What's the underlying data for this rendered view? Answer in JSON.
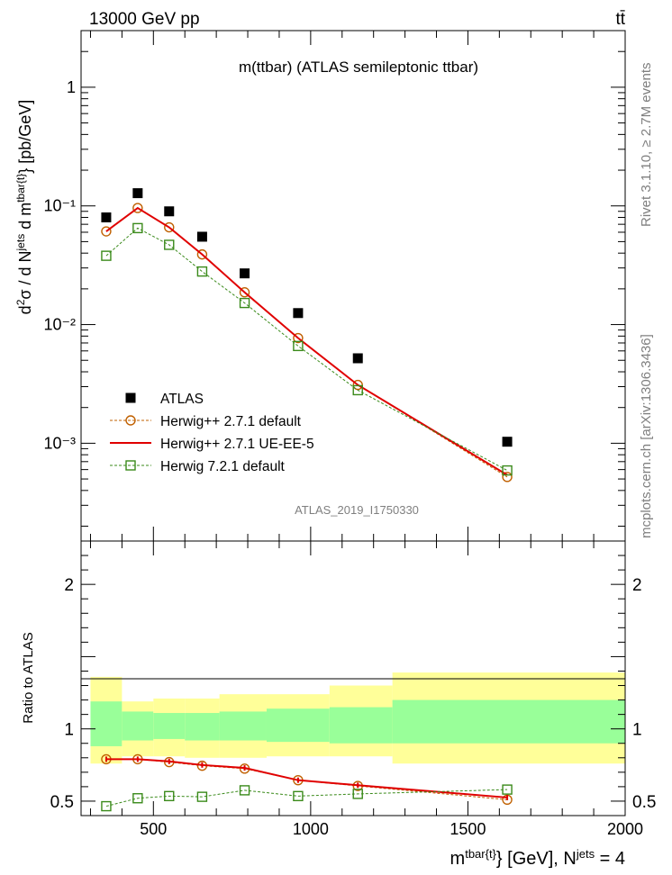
{
  "header": {
    "left": "13000 GeV pp",
    "right": "tt̄"
  },
  "side_labels": {
    "rivet": "Rivet 3.1.10, ≥ 2.7M events",
    "mcplots": "mcplots.cern.ch [arXiv:1306.3436]"
  },
  "watermark": "ATLAS_2019_I1750330",
  "colors": {
    "atlas": "#000000",
    "herwigpp_default": "#c06000",
    "herwigpp_ueee5": "#e00000",
    "herwig7": "#3a8a1a",
    "band_inner": "#99ff99",
    "band_outer": "#ffff99"
  },
  "chart_data": [
    {
      "type": "line",
      "title": "m(ttbar) (ATLAS semileptonic ttbar)",
      "ylabel": "d²σ / d N^jets d m^tbar{t} [pb/GeV]",
      "yscale": "log",
      "ylim": [
        0.00015,
        3
      ],
      "xlim": [
        270,
        2000
      ],
      "y_ticks": [
        "10⁻³",
        "10⁻²",
        "10⁻¹",
        "1"
      ],
      "legend_position": "lower-left",
      "x": [
        350,
        450,
        550,
        655,
        790,
        960,
        1150,
        1625
      ],
      "series": [
        {
          "name": "ATLAS",
          "values": [
            0.08,
            0.128,
            0.09,
            0.055,
            0.027,
            0.0125,
            0.0052,
            0.00103
          ]
        },
        {
          "name": "Herwig++ 2.7.1 default",
          "values": [
            0.061,
            0.096,
            0.066,
            0.039,
            0.0187,
            0.0077,
            0.0031,
            0.00052
          ]
        },
        {
          "name": "Herwig++ 2.7.1 UE-EE-5",
          "values": [
            0.061,
            0.096,
            0.066,
            0.039,
            0.0187,
            0.0077,
            0.0031,
            0.00054
          ]
        },
        {
          "name": "Herwig 7.2.1 default",
          "values": [
            0.038,
            0.065,
            0.047,
            0.028,
            0.0152,
            0.0066,
            0.0028,
            0.00059
          ]
        }
      ]
    },
    {
      "type": "line",
      "ylabel": "Ratio to ATLAS",
      "xlabel": "m^tbar{t} [GeV], N^jets = 4",
      "ylim": [
        0.4,
        2.3
      ],
      "xlim": [
        270,
        2000
      ],
      "x_ticks": [
        "500",
        "1000",
        "1500",
        "2000"
      ],
      "y_ticks": [
        "0.5",
        "1",
        "2"
      ],
      "x": [
        350,
        450,
        550,
        655,
        790,
        960,
        1150,
        1625
      ],
      "bin_edges": [
        300,
        400,
        500,
        600,
        710,
        860,
        1060,
        1260,
        2000
      ],
      "band_inner": [
        [
          0.88,
          1.19
        ],
        [
          0.92,
          1.12
        ],
        [
          0.93,
          1.11
        ],
        [
          0.92,
          1.11
        ],
        [
          0.92,
          1.12
        ],
        [
          0.91,
          1.14
        ],
        [
          0.9,
          1.15
        ],
        [
          0.9,
          1.2
        ]
      ],
      "band_outer": [
        [
          0.76,
          1.36
        ],
        [
          0.81,
          1.19
        ],
        [
          0.81,
          1.21
        ],
        [
          0.8,
          1.21
        ],
        [
          0.8,
          1.24
        ],
        [
          0.81,
          1.24
        ],
        [
          0.81,
          1.3
        ],
        [
          0.76,
          1.39
        ]
      ],
      "series": [
        {
          "name": "Herwig++ 2.7.1 default",
          "values": [
            0.79,
            0.79,
            0.77,
            0.745,
            0.725,
            0.645,
            0.605,
            0.51
          ]
        },
        {
          "name": "Herwig++ 2.7.1 UE-EE-5",
          "values": [
            0.79,
            0.79,
            0.775,
            0.75,
            0.73,
            0.645,
            0.61,
            0.525
          ]
        },
        {
          "name": "Herwig 7.2.1 default",
          "values": [
            0.465,
            0.52,
            0.535,
            0.53,
            0.575,
            0.535,
            0.55,
            0.58
          ]
        }
      ]
    }
  ]
}
